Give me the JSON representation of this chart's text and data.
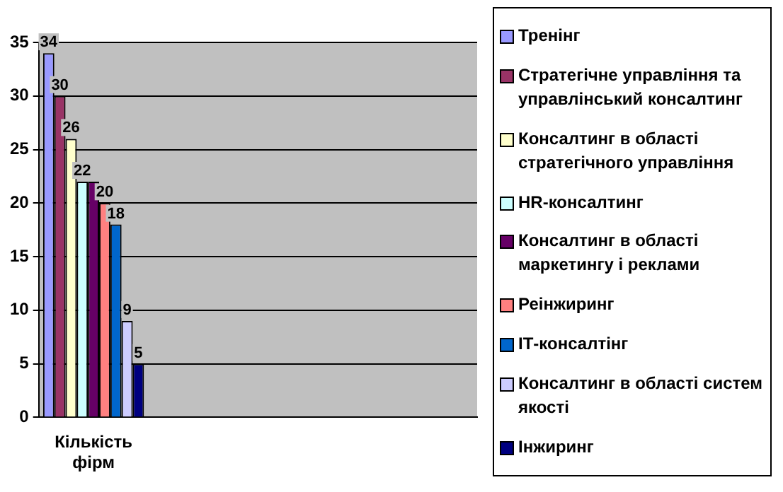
{
  "chart_data": {
    "type": "bar",
    "categories": [
      "Кількість фірм",
      null,
      null,
      null
    ],
    "series": [
      {
        "name": "Тренінг",
        "color": "#9999ff",
        "values": [
          34,
          null,
          null,
          null
        ]
      },
      {
        "name": "Стратегічне управління та управлінський консалтинг",
        "color": "#993366",
        "values": [
          30,
          null,
          null,
          null
        ]
      },
      {
        "name": "Консалтинг в області стратегічного управління",
        "color": "#ffffcc",
        "values": [
          26,
          null,
          null,
          null
        ]
      },
      {
        "name": "HR-консалтинг",
        "color": "#ccffff",
        "values": [
          22,
          null,
          null,
          null
        ]
      },
      {
        "name": "Консалтинг в області маркетингу і реклами",
        "color": "#660066",
        "values": [
          22,
          null,
          null,
          null
        ],
        "value_labels": [
          null,
          null,
          null,
          null
        ]
      },
      {
        "name": "Реінжиринг",
        "color": "#ff8080",
        "values": [
          20,
          null,
          null,
          null
        ]
      },
      {
        "name": "ІТ-консалтінг",
        "color": "#0066cc",
        "values": [
          18,
          null,
          null,
          null
        ]
      },
      {
        "name": "Консалтинг в області систем якості",
        "color": "#ccccff",
        "values": [
          9,
          null,
          null,
          null
        ]
      },
      {
        "name": "Інжиринг",
        "color": "#000080",
        "values": [
          5,
          null,
          null,
          null
        ]
      }
    ],
    "ylim": [
      0,
      35
    ],
    "yticks": [
      0,
      5,
      10,
      15,
      20,
      25,
      30,
      35
    ],
    "grid": "y",
    "legend": "right",
    "data_labels": true
  }
}
